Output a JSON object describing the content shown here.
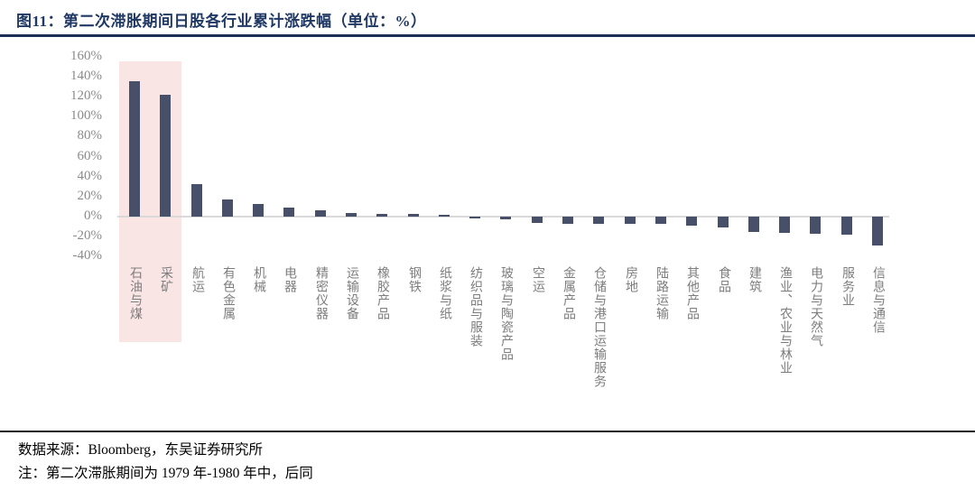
{
  "header": {
    "title": "图11：第二次滞胀期间日股各行业累计涨跌幅（单位：%）"
  },
  "chart_data": {
    "type": "bar",
    "title": "第二次滞胀期间日股各行业累计涨跌幅",
    "unit": "%",
    "categories": [
      "石油与煤",
      "采矿",
      "航运",
      "有色金属",
      "机械",
      "电器",
      "精密仪器",
      "运输设备",
      "橡胶产品",
      "钢铁",
      "纸浆与纸",
      "纺织品与服装",
      "玻璃与陶瓷产品",
      "空运",
      "金属产品",
      "仓储与港口运输服务",
      "房地",
      "陆路运输",
      "其他产品",
      "食品",
      "建筑",
      "渔业、农业与林业",
      "电力与天然气",
      "服务业",
      "信息与通信"
    ],
    "values": [
      136,
      122,
      33,
      17,
      13,
      9,
      6,
      4,
      3,
      2.5,
      2,
      -2,
      -3,
      -6.5,
      -7,
      -7,
      -7.5,
      -7.5,
      -9,
      -10.5,
      -15,
      -16,
      -17,
      -18,
      -29
    ],
    "ylim": [
      -40,
      160
    ],
    "ytick_step": 20,
    "ytick_labels": [
      "160%",
      "140%",
      "120%",
      "100%",
      "80%",
      "60%",
      "40%",
      "20%",
      "0%",
      "-20%",
      "-40%"
    ],
    "grid": false,
    "legend": null,
    "highlight": {
      "categories": [
        "石油与煤",
        "采矿"
      ],
      "color": "#fae5e5"
    },
    "bar_color": "#484f68",
    "axis_line_color": "#d9d9d9",
    "tick_label_color": "#8b8b8b",
    "category_label_color": "#7d7d7d"
  },
  "footer": {
    "source": "数据来源：Bloomberg，东吴证券研究所",
    "note": "注：第二次滞胀期间为 1979 年-1980 年中，后同"
  },
  "colors": {
    "title_text": "#1f3864",
    "title_rule": "#1c2f55",
    "footer_rule": "#1a1a1a"
  }
}
